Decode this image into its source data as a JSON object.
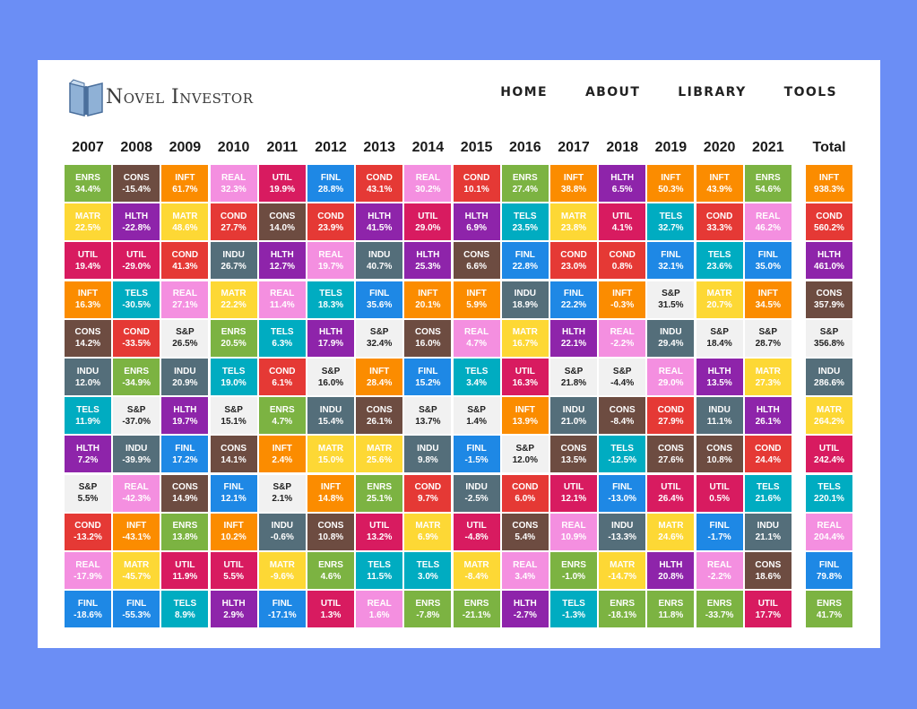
{
  "header": {
    "logo_text": "Novel Investor",
    "nav": [
      "HOME",
      "ABOUT",
      "LIBRARY",
      "TOOLS"
    ]
  },
  "colors": {
    "ENRS": "#7cb342",
    "CONS": "#6d4c41",
    "INFT": "#fb8c00",
    "REAL": "#f48fe0",
    "UTIL": "#d81b60",
    "FINL": "#1e88e5",
    "COND": "#e53935",
    "HLTH": "#8e24aa",
    "MATR": "#fdd835",
    "TELS": "#00acc1",
    "INDU": "#546e7a",
    "S&P": "#f1f1f1"
  },
  "chart_data": {
    "type": "table",
    "columns": [
      "2007",
      "2008",
      "2009",
      "2010",
      "2011",
      "2012",
      "2013",
      "2014",
      "2015",
      "2016",
      "2017",
      "2018",
      "2019",
      "2020",
      "2021",
      "Total"
    ],
    "ranks": [
      [
        [
          "ENRS",
          "34.4%"
        ],
        [
          "CONS",
          "-15.4%"
        ],
        [
          "INFT",
          "61.7%"
        ],
        [
          "REAL",
          "32.3%"
        ],
        [
          "UTIL",
          "19.9%"
        ],
        [
          "FINL",
          "28.8%"
        ],
        [
          "COND",
          "43.1%"
        ],
        [
          "REAL",
          "30.2%"
        ],
        [
          "COND",
          "10.1%"
        ],
        [
          "ENRS",
          "27.4%"
        ],
        [
          "INFT",
          "38.8%"
        ],
        [
          "HLTH",
          "6.5%"
        ],
        [
          "INFT",
          "50.3%"
        ],
        [
          "INFT",
          "43.9%"
        ],
        [
          "ENRS",
          "54.6%"
        ],
        [
          "INFT",
          "938.3%"
        ]
      ],
      [
        [
          "MATR",
          "22.5%"
        ],
        [
          "HLTH",
          "-22.8%"
        ],
        [
          "MATR",
          "48.6%"
        ],
        [
          "COND",
          "27.7%"
        ],
        [
          "CONS",
          "14.0%"
        ],
        [
          "COND",
          "23.9%"
        ],
        [
          "HLTH",
          "41.5%"
        ],
        [
          "UTIL",
          "29.0%"
        ],
        [
          "HLTH",
          "6.9%"
        ],
        [
          "TELS",
          "23.5%"
        ],
        [
          "MATR",
          "23.8%"
        ],
        [
          "UTIL",
          "4.1%"
        ],
        [
          "TELS",
          "32.7%"
        ],
        [
          "COND",
          "33.3%"
        ],
        [
          "REAL",
          "46.2%"
        ],
        [
          "COND",
          "560.2%"
        ]
      ],
      [
        [
          "UTIL",
          "19.4%"
        ],
        [
          "UTIL",
          "-29.0%"
        ],
        [
          "COND",
          "41.3%"
        ],
        [
          "INDU",
          "26.7%"
        ],
        [
          "HLTH",
          "12.7%"
        ],
        [
          "REAL",
          "19.7%"
        ],
        [
          "INDU",
          "40.7%"
        ],
        [
          "HLTH",
          "25.3%"
        ],
        [
          "CONS",
          "6.6%"
        ],
        [
          "FINL",
          "22.8%"
        ],
        [
          "COND",
          "23.0%"
        ],
        [
          "COND",
          "0.8%"
        ],
        [
          "FINL",
          "32.1%"
        ],
        [
          "TELS",
          "23.6%"
        ],
        [
          "FINL",
          "35.0%"
        ],
        [
          "HLTH",
          "461.0%"
        ]
      ],
      [
        [
          "INFT",
          "16.3%"
        ],
        [
          "TELS",
          "-30.5%"
        ],
        [
          "REAL",
          "27.1%"
        ],
        [
          "MATR",
          "22.2%"
        ],
        [
          "REAL",
          "11.4%"
        ],
        [
          "TELS",
          "18.3%"
        ],
        [
          "FINL",
          "35.6%"
        ],
        [
          "INFT",
          "20.1%"
        ],
        [
          "INFT",
          "5.9%"
        ],
        [
          "INDU",
          "18.9%"
        ],
        [
          "FINL",
          "22.2%"
        ],
        [
          "INFT",
          "-0.3%"
        ],
        [
          "S&P",
          "31.5%"
        ],
        [
          "MATR",
          "20.7%"
        ],
        [
          "INFT",
          "34.5%"
        ],
        [
          "CONS",
          "357.9%"
        ]
      ],
      [
        [
          "CONS",
          "14.2%"
        ],
        [
          "COND",
          "-33.5%"
        ],
        [
          "S&P",
          "26.5%"
        ],
        [
          "ENRS",
          "20.5%"
        ],
        [
          "TELS",
          "6.3%"
        ],
        [
          "HLTH",
          "17.9%"
        ],
        [
          "S&P",
          "32.4%"
        ],
        [
          "CONS",
          "16.0%"
        ],
        [
          "REAL",
          "4.7%"
        ],
        [
          "MATR",
          "16.7%"
        ],
        [
          "HLTH",
          "22.1%"
        ],
        [
          "REAL",
          "-2.2%"
        ],
        [
          "INDU",
          "29.4%"
        ],
        [
          "S&P",
          "18.4%"
        ],
        [
          "S&P",
          "28.7%"
        ],
        [
          "S&P",
          "356.8%"
        ]
      ],
      [
        [
          "INDU",
          "12.0%"
        ],
        [
          "ENRS",
          "-34.9%"
        ],
        [
          "INDU",
          "20.9%"
        ],
        [
          "TELS",
          "19.0%"
        ],
        [
          "COND",
          "6.1%"
        ],
        [
          "S&P",
          "16.0%"
        ],
        [
          "INFT",
          "28.4%"
        ],
        [
          "FINL",
          "15.2%"
        ],
        [
          "TELS",
          "3.4%"
        ],
        [
          "UTIL",
          "16.3%"
        ],
        [
          "S&P",
          "21.8%"
        ],
        [
          "S&P",
          "-4.4%"
        ],
        [
          "REAL",
          "29.0%"
        ],
        [
          "HLTH",
          "13.5%"
        ],
        [
          "MATR",
          "27.3%"
        ],
        [
          "INDU",
          "286.6%"
        ]
      ],
      [
        [
          "TELS",
          "11.9%"
        ],
        [
          "S&P",
          "-37.0%"
        ],
        [
          "HLTH",
          "19.7%"
        ],
        [
          "S&P",
          "15.1%"
        ],
        [
          "ENRS",
          "4.7%"
        ],
        [
          "INDU",
          "15.4%"
        ],
        [
          "CONS",
          "26.1%"
        ],
        [
          "S&P",
          "13.7%"
        ],
        [
          "S&P",
          "1.4%"
        ],
        [
          "INFT",
          "13.9%"
        ],
        [
          "INDU",
          "21.0%"
        ],
        [
          "CONS",
          "-8.4%"
        ],
        [
          "COND",
          "27.9%"
        ],
        [
          "INDU",
          "11.1%"
        ],
        [
          "HLTH",
          "26.1%"
        ],
        [
          "MATR",
          "264.2%"
        ]
      ],
      [
        [
          "HLTH",
          "7.2%"
        ],
        [
          "INDU",
          "-39.9%"
        ],
        [
          "FINL",
          "17.2%"
        ],
        [
          "CONS",
          "14.1%"
        ],
        [
          "INFT",
          "2.4%"
        ],
        [
          "MATR",
          "15.0%"
        ],
        [
          "MATR",
          "25.6%"
        ],
        [
          "INDU",
          "9.8%"
        ],
        [
          "FINL",
          "-1.5%"
        ],
        [
          "S&P",
          "12.0%"
        ],
        [
          "CONS",
          "13.5%"
        ],
        [
          "TELS",
          "-12.5%"
        ],
        [
          "CONS",
          "27.6%"
        ],
        [
          "CONS",
          "10.8%"
        ],
        [
          "COND",
          "24.4%"
        ],
        [
          "UTIL",
          "242.4%"
        ]
      ],
      [
        [
          "S&P",
          "5.5%"
        ],
        [
          "REAL",
          "-42.3%"
        ],
        [
          "CONS",
          "14.9%"
        ],
        [
          "FINL",
          "12.1%"
        ],
        [
          "S&P",
          "2.1%"
        ],
        [
          "INFT",
          "14.8%"
        ],
        [
          "ENRS",
          "25.1%"
        ],
        [
          "COND",
          "9.7%"
        ],
        [
          "INDU",
          "-2.5%"
        ],
        [
          "COND",
          "6.0%"
        ],
        [
          "UTIL",
          "12.1%"
        ],
        [
          "FINL",
          "-13.0%"
        ],
        [
          "UTIL",
          "26.4%"
        ],
        [
          "UTIL",
          "0.5%"
        ],
        [
          "TELS",
          "21.6%"
        ],
        [
          "TELS",
          "220.1%"
        ]
      ],
      [
        [
          "COND",
          "-13.2%"
        ],
        [
          "INFT",
          "-43.1%"
        ],
        [
          "ENRS",
          "13.8%"
        ],
        [
          "INFT",
          "10.2%"
        ],
        [
          "INDU",
          "-0.6%"
        ],
        [
          "CONS",
          "10.8%"
        ],
        [
          "UTIL",
          "13.2%"
        ],
        [
          "MATR",
          "6.9%"
        ],
        [
          "UTIL",
          "-4.8%"
        ],
        [
          "CONS",
          "5.4%"
        ],
        [
          "REAL",
          "10.9%"
        ],
        [
          "INDU",
          "-13.3%"
        ],
        [
          "MATR",
          "24.6%"
        ],
        [
          "FINL",
          "-1.7%"
        ],
        [
          "INDU",
          "21.1%"
        ],
        [
          "REAL",
          "204.4%"
        ]
      ],
      [
        [
          "REAL",
          "-17.9%"
        ],
        [
          "MATR",
          "-45.7%"
        ],
        [
          "UTIL",
          "11.9%"
        ],
        [
          "UTIL",
          "5.5%"
        ],
        [
          "MATR",
          "-9.6%"
        ],
        [
          "ENRS",
          "4.6%"
        ],
        [
          "TELS",
          "11.5%"
        ],
        [
          "TELS",
          "3.0%"
        ],
        [
          "MATR",
          "-8.4%"
        ],
        [
          "REAL",
          "3.4%"
        ],
        [
          "ENRS",
          "-1.0%"
        ],
        [
          "MATR",
          "-14.7%"
        ],
        [
          "HLTH",
          "20.8%"
        ],
        [
          "REAL",
          "-2.2%"
        ],
        [
          "CONS",
          "18.6%"
        ],
        [
          "FINL",
          "79.8%"
        ]
      ],
      [
        [
          "FINL",
          "-18.6%"
        ],
        [
          "FINL",
          "-55.3%"
        ],
        [
          "TELS",
          "8.9%"
        ],
        [
          "HLTH",
          "2.9%"
        ],
        [
          "FINL",
          "-17.1%"
        ],
        [
          "UTIL",
          "1.3%"
        ],
        [
          "REAL",
          "1.6%"
        ],
        [
          "ENRS",
          "-7.8%"
        ],
        [
          "ENRS",
          "-21.1%"
        ],
        [
          "HLTH",
          "-2.7%"
        ],
        [
          "TELS",
          "-1.3%"
        ],
        [
          "ENRS",
          "-18.1%"
        ],
        [
          "ENRS",
          "11.8%"
        ],
        [
          "ENRS",
          "-33.7%"
        ],
        [
          "UTIL",
          "17.7%"
        ],
        [
          "ENRS",
          "41.7%"
        ]
      ]
    ]
  }
}
